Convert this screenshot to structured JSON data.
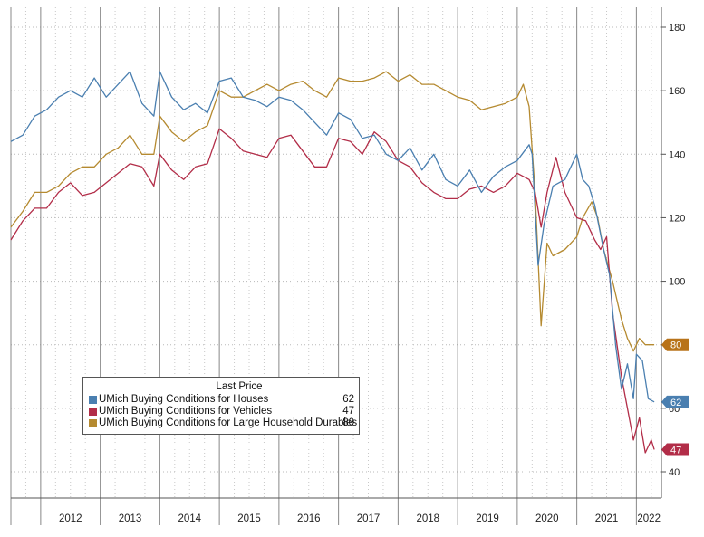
{
  "chart_data": {
    "type": "line",
    "y_axis": {
      "side": "right",
      "ylim": [
        35,
        185
      ],
      "ticks": [
        40,
        60,
        80,
        100,
        120,
        140,
        160,
        180
      ]
    },
    "x_axis": {
      "years": [
        "2012",
        "2013",
        "2014",
        "2015",
        "2016",
        "2017",
        "2018",
        "2019",
        "2020",
        "2021",
        "2022"
      ]
    },
    "grid": true,
    "legend": {
      "title": "Last Price",
      "placement": "bottom-left",
      "entries": [
        {
          "name": "UMich Buying Conditions for Houses",
          "last": "62",
          "color": "#4a7fb0"
        },
        {
          "name": "UMich Buying Conditions for Vehicles",
          "last": "47",
          "color": "#b22d48"
        },
        {
          "name": "UMich Buying Conditions for Large Household Durables",
          "last": "80",
          "color": "#b58a30"
        }
      ]
    },
    "last_price_tags": [
      {
        "value": 80,
        "label": "80",
        "color": "#b8731a"
      },
      {
        "value": 62,
        "label": "62",
        "color": "#4a7fb0"
      },
      {
        "value": 47,
        "label": "47",
        "color": "#b22d48"
      }
    ],
    "series": [
      {
        "name": "UMich Buying Conditions for Houses",
        "color": "#4a7fb0",
        "points": [
          [
            2011.5,
            144
          ],
          [
            2011.7,
            146
          ],
          [
            2011.9,
            152
          ],
          [
            2012.1,
            154
          ],
          [
            2012.3,
            158
          ],
          [
            2012.5,
            160
          ],
          [
            2012.7,
            158
          ],
          [
            2012.9,
            164
          ],
          [
            2013.1,
            158
          ],
          [
            2013.3,
            162
          ],
          [
            2013.5,
            166
          ],
          [
            2013.7,
            156
          ],
          [
            2013.9,
            152
          ],
          [
            2014.0,
            166
          ],
          [
            2014.2,
            158
          ],
          [
            2014.4,
            154
          ],
          [
            2014.6,
            156
          ],
          [
            2014.8,
            153
          ],
          [
            2015.0,
            163
          ],
          [
            2015.2,
            164
          ],
          [
            2015.4,
            158
          ],
          [
            2015.6,
            157
          ],
          [
            2015.8,
            155
          ],
          [
            2016.0,
            158
          ],
          [
            2016.2,
            157
          ],
          [
            2016.4,
            154
          ],
          [
            2016.6,
            150
          ],
          [
            2016.8,
            146
          ],
          [
            2017.0,
            153
          ],
          [
            2017.2,
            151
          ],
          [
            2017.4,
            145
          ],
          [
            2017.6,
            146
          ],
          [
            2017.8,
            140
          ],
          [
            2018.0,
            138
          ],
          [
            2018.2,
            142
          ],
          [
            2018.4,
            135
          ],
          [
            2018.6,
            140
          ],
          [
            2018.8,
            132
          ],
          [
            2019.0,
            130
          ],
          [
            2019.2,
            135
          ],
          [
            2019.4,
            128
          ],
          [
            2019.6,
            133
          ],
          [
            2019.8,
            136
          ],
          [
            2020.0,
            138
          ],
          [
            2020.2,
            143
          ],
          [
            2020.25,
            140
          ],
          [
            2020.35,
            105
          ],
          [
            2020.45,
            118
          ],
          [
            2020.6,
            130
          ],
          [
            2020.8,
            132
          ],
          [
            2021.0,
            140
          ],
          [
            2021.1,
            132
          ],
          [
            2021.2,
            130
          ],
          [
            2021.3,
            124
          ],
          [
            2021.45,
            110
          ],
          [
            2021.55,
            102
          ],
          [
            2021.65,
            80
          ],
          [
            2021.75,
            66
          ],
          [
            2021.85,
            74
          ],
          [
            2021.95,
            63
          ],
          [
            2022.0,
            77
          ],
          [
            2022.1,
            75
          ],
          [
            2022.2,
            63
          ],
          [
            2022.3,
            62
          ]
        ]
      },
      {
        "name": "UMich Buying Conditions for Vehicles",
        "color": "#b22d48",
        "points": [
          [
            2011.5,
            113
          ],
          [
            2011.7,
            119
          ],
          [
            2011.9,
            123
          ],
          [
            2012.1,
            123
          ],
          [
            2012.3,
            128
          ],
          [
            2012.5,
            131
          ],
          [
            2012.7,
            127
          ],
          [
            2012.9,
            128
          ],
          [
            2013.1,
            131
          ],
          [
            2013.3,
            134
          ],
          [
            2013.5,
            137
          ],
          [
            2013.7,
            136
          ],
          [
            2013.9,
            130
          ],
          [
            2014.0,
            140
          ],
          [
            2014.2,
            135
          ],
          [
            2014.4,
            132
          ],
          [
            2014.6,
            136
          ],
          [
            2014.8,
            137
          ],
          [
            2015.0,
            148
          ],
          [
            2015.2,
            145
          ],
          [
            2015.4,
            141
          ],
          [
            2015.6,
            140
          ],
          [
            2015.8,
            139
          ],
          [
            2016.0,
            145
          ],
          [
            2016.2,
            146
          ],
          [
            2016.4,
            141
          ],
          [
            2016.6,
            136
          ],
          [
            2016.8,
            136
          ],
          [
            2017.0,
            145
          ],
          [
            2017.2,
            144
          ],
          [
            2017.4,
            140
          ],
          [
            2017.6,
            147
          ],
          [
            2017.8,
            144
          ],
          [
            2018.0,
            138
          ],
          [
            2018.2,
            136
          ],
          [
            2018.4,
            131
          ],
          [
            2018.6,
            128
          ],
          [
            2018.8,
            126
          ],
          [
            2019.0,
            126
          ],
          [
            2019.2,
            129
          ],
          [
            2019.4,
            130
          ],
          [
            2019.6,
            128
          ],
          [
            2019.8,
            130
          ],
          [
            2020.0,
            134
          ],
          [
            2020.2,
            132
          ],
          [
            2020.3,
            128
          ],
          [
            2020.4,
            117
          ],
          [
            2020.5,
            128
          ],
          [
            2020.65,
            139
          ],
          [
            2020.8,
            128
          ],
          [
            2021.0,
            120
          ],
          [
            2021.15,
            119
          ],
          [
            2021.3,
            113
          ],
          [
            2021.4,
            110
          ],
          [
            2021.5,
            114
          ],
          [
            2021.6,
            90
          ],
          [
            2021.75,
            70
          ],
          [
            2021.85,
            60
          ],
          [
            2021.95,
            50
          ],
          [
            2022.05,
            57
          ],
          [
            2022.15,
            46
          ],
          [
            2022.25,
            50
          ],
          [
            2022.3,
            47
          ]
        ]
      },
      {
        "name": "UMich Buying Conditions for Large Household Durables",
        "color": "#b58a30",
        "points": [
          [
            2011.5,
            117
          ],
          [
            2011.7,
            122
          ],
          [
            2011.9,
            128
          ],
          [
            2012.1,
            128
          ],
          [
            2012.3,
            130
          ],
          [
            2012.5,
            134
          ],
          [
            2012.7,
            136
          ],
          [
            2012.9,
            136
          ],
          [
            2013.1,
            140
          ],
          [
            2013.3,
            142
          ],
          [
            2013.5,
            146
          ],
          [
            2013.7,
            140
          ],
          [
            2013.9,
            140
          ],
          [
            2014.0,
            152
          ],
          [
            2014.2,
            147
          ],
          [
            2014.4,
            144
          ],
          [
            2014.6,
            147
          ],
          [
            2014.8,
            149
          ],
          [
            2015.0,
            160
          ],
          [
            2015.2,
            158
          ],
          [
            2015.4,
            158
          ],
          [
            2015.6,
            160
          ],
          [
            2015.8,
            162
          ],
          [
            2016.0,
            160
          ],
          [
            2016.2,
            162
          ],
          [
            2016.4,
            163
          ],
          [
            2016.6,
            160
          ],
          [
            2016.8,
            158
          ],
          [
            2017.0,
            164
          ],
          [
            2017.2,
            163
          ],
          [
            2017.4,
            163
          ],
          [
            2017.6,
            164
          ],
          [
            2017.8,
            166
          ],
          [
            2018.0,
            163
          ],
          [
            2018.2,
            165
          ],
          [
            2018.4,
            162
          ],
          [
            2018.6,
            162
          ],
          [
            2018.8,
            160
          ],
          [
            2019.0,
            158
          ],
          [
            2019.2,
            157
          ],
          [
            2019.4,
            154
          ],
          [
            2019.6,
            155
          ],
          [
            2019.8,
            156
          ],
          [
            2020.0,
            158
          ],
          [
            2020.1,
            162
          ],
          [
            2020.2,
            155
          ],
          [
            2020.3,
            128
          ],
          [
            2020.4,
            86
          ],
          [
            2020.5,
            112
          ],
          [
            2020.6,
            108
          ],
          [
            2020.8,
            110
          ],
          [
            2021.0,
            114
          ],
          [
            2021.1,
            120
          ],
          [
            2021.25,
            125
          ],
          [
            2021.35,
            120
          ],
          [
            2021.45,
            110
          ],
          [
            2021.6,
            100
          ],
          [
            2021.75,
            88
          ],
          [
            2021.85,
            82
          ],
          [
            2021.95,
            78
          ],
          [
            2022.05,
            82
          ],
          [
            2022.15,
            80
          ],
          [
            2022.3,
            80
          ]
        ]
      }
    ]
  }
}
